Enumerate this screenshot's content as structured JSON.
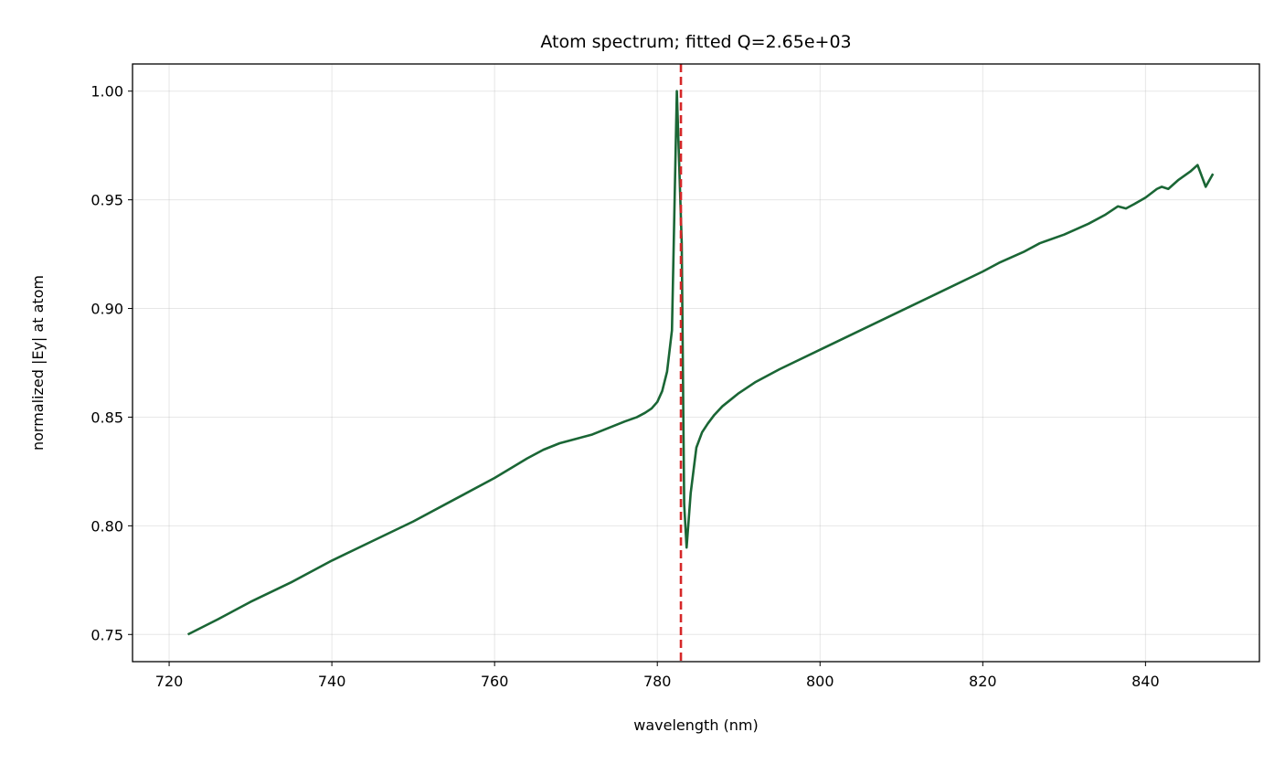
{
  "chart_data": {
    "type": "line",
    "title": "Atom spectrum; fitted Q=2.65e+03",
    "xlabel": "wavelength (nm)",
    "ylabel": "normalized |Ey| at atom",
    "xlim": [
      715.5,
      854.0
    ],
    "ylim": [
      0.7375,
      1.0125
    ],
    "x_ticks": [
      720,
      740,
      760,
      780,
      800,
      820,
      840
    ],
    "x_tick_labels": [
      "720",
      "740",
      "760",
      "780",
      "800",
      "820",
      "840"
    ],
    "y_ticks": [
      0.75,
      0.8,
      0.85,
      0.9,
      0.95,
      1.0
    ],
    "y_tick_labels": [
      "0.75",
      "0.80",
      "0.85",
      "0.90",
      "0.95",
      "1.00"
    ],
    "grid": true,
    "colors": {
      "spectrum": "#1a6635",
      "resonance_marker": "#d62728"
    },
    "resonance_marker": {
      "x": 782.9,
      "style": "dashed"
    },
    "series": [
      {
        "x": [
          722.3,
          726,
          730,
          735,
          740,
          745,
          750,
          755,
          760,
          764,
          766,
          768,
          770,
          772,
          774,
          776,
          777.5,
          778.5,
          779.3,
          780.0,
          780.6,
          781.2,
          781.8,
          782.4,
          782.7,
          783.0,
          783.3,
          783.6,
          784.1,
          784.8,
          785.5,
          786.2,
          787.0,
          788.0,
          789.0,
          790.0,
          792.0,
          795.0,
          800.0,
          805.0,
          810.0,
          815.0,
          820.0,
          822.0,
          825.0,
          827.0,
          830.0,
          833.0,
          835.0,
          836.6,
          837.6,
          838.6,
          840.0,
          841.4,
          842.0,
          842.8,
          844.0,
          845.5,
          846.4,
          847.4,
          848.3
        ],
        "values": [
          0.75,
          0.757,
          0.765,
          0.774,
          0.784,
          0.793,
          0.802,
          0.812,
          0.822,
          0.831,
          0.835,
          0.838,
          0.84,
          0.842,
          0.845,
          0.848,
          0.85,
          0.852,
          0.854,
          0.857,
          0.862,
          0.871,
          0.89,
          1.0,
          0.965,
          0.93,
          0.81,
          0.79,
          0.815,
          0.836,
          0.843,
          0.847,
          0.851,
          0.855,
          0.858,
          0.861,
          0.866,
          0.872,
          0.881,
          0.89,
          0.899,
          0.908,
          0.917,
          0.921,
          0.926,
          0.93,
          0.934,
          0.939,
          0.943,
          0.947,
          0.946,
          0.948,
          0.951,
          0.955,
          0.956,
          0.955,
          0.959,
          0.963,
          0.966,
          0.956,
          0.962
        ]
      }
    ]
  }
}
